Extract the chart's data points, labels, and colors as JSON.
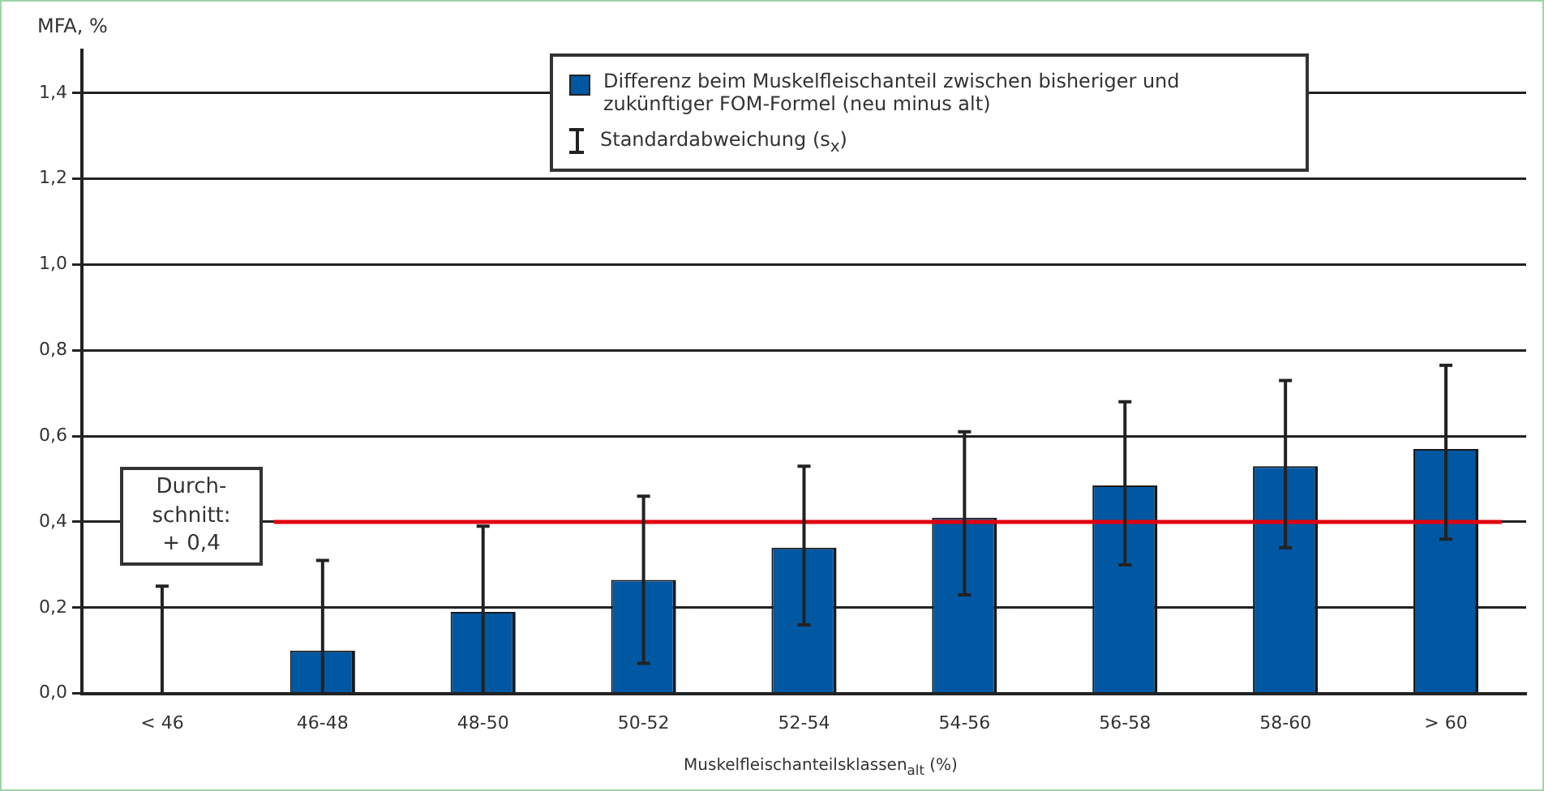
{
  "chart_data": {
    "type": "bar",
    "ylabel": "MFA, %",
    "xlabel": "Muskelfleischanteilsklassen$_{alt}$ (%)",
    "categories": [
      "< 46",
      "46-48",
      "48-50",
      "50-52",
      "52-54",
      "54-56",
      "56-58",
      "58-60",
      "> 60"
    ],
    "series": [
      {
        "name": "Differenz beim Muskelfleischanteil zwischen bisheriger und zukünftiger FOM-Formel (neu minus alt)",
        "color": "#0058a3",
        "values": [
          0,
          0.1,
          0.19,
          0.265,
          0.34,
          0.41,
          0.485,
          0.53,
          0.57
        ],
        "errors": [
          [
            0,
            0.25
          ],
          [
            0,
            0.31
          ],
          [
            0,
            0.39
          ],
          [
            0.07,
            0.46
          ],
          [
            0.16,
            0.53
          ],
          [
            0.23,
            0.61
          ],
          [
            0.3,
            0.68
          ],
          [
            0.34,
            0.73
          ],
          [
            0.36,
            0.765
          ]
        ]
      }
    ],
    "ylim": [
      0,
      1.5
    ],
    "yticks": [
      {
        "value": 0,
        "label": "0,0"
      },
      {
        "value": 0.2,
        "label": "0,2"
      },
      {
        "value": 0.4,
        "label": "0,4"
      },
      {
        "value": 0.6,
        "label": "0,6"
      },
      {
        "value": 0.8,
        "label": "0,8"
      },
      {
        "value": 1.0,
        "label": "1,0"
      },
      {
        "value": 1.2,
        "label": "1,2"
      },
      {
        "value": 1.4,
        "label": "1,4"
      }
    ],
    "grid": "y",
    "legend": "top right",
    "annotations": [
      "Standardabweichung (s$_{x}$)"
    ],
    "ref_lines": [
      {
        "axis": "y",
        "value": 0.4,
        "label": "Durch-\nschnitt:\n+ 0,4",
        "color": "#e3000f"
      }
    ]
  }
}
